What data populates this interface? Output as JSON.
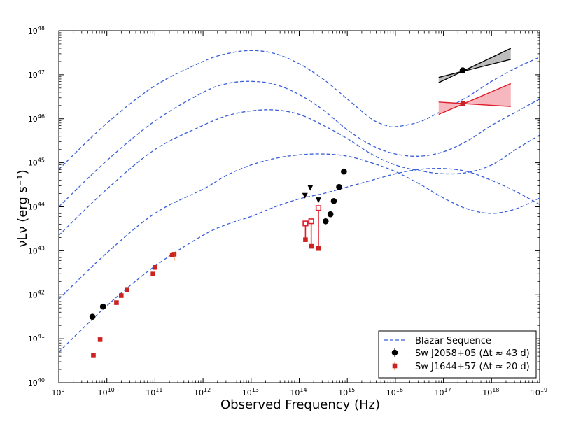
{
  "chart_data": {
    "type": "scatter",
    "xlabel": "Observed Frequency (Hz)",
    "ylabel": "νLν (erg s⁻¹)",
    "xscale": "log",
    "yscale": "log",
    "xlim_exp": [
      9,
      19
    ],
    "ylim_exp": [
      40,
      48
    ],
    "x_ticks": [
      {
        "base": "10",
        "exp": "9",
        "v": 9
      },
      {
        "base": "10",
        "exp": "10",
        "v": 10
      },
      {
        "base": "10",
        "exp": "11",
        "v": 11
      },
      {
        "base": "10",
        "exp": "12",
        "v": 12
      },
      {
        "base": "10",
        "exp": "13",
        "v": 13
      },
      {
        "base": "10",
        "exp": "14",
        "v": 14
      },
      {
        "base": "10",
        "exp": "15",
        "v": 15
      },
      {
        "base": "10",
        "exp": "16",
        "v": 16
      },
      {
        "base": "10",
        "exp": "17",
        "v": 17
      },
      {
        "base": "10",
        "exp": "18",
        "v": 18
      },
      {
        "base": "10",
        "exp": "19",
        "v": 19
      }
    ],
    "y_ticks": [
      {
        "base": "10",
        "exp": "40",
        "v": 40
      },
      {
        "base": "10",
        "exp": "41",
        "v": 41
      },
      {
        "base": "10",
        "exp": "42",
        "v": 42
      },
      {
        "base": "10",
        "exp": "43",
        "v": 43
      },
      {
        "base": "10",
        "exp": "44",
        "v": 44
      },
      {
        "base": "10",
        "exp": "45",
        "v": 45
      },
      {
        "base": "10",
        "exp": "46",
        "v": 46
      },
      {
        "base": "10",
        "exp": "47",
        "v": 47
      },
      {
        "base": "10",
        "exp": "48",
        "v": 48
      }
    ],
    "blazar_sequence": {
      "name": "Blazar Sequence",
      "color": "#3a5fd9",
      "curves": [
        [
          [
            9.0,
            44.85
          ],
          [
            10.0,
            45.9
          ],
          [
            11.0,
            46.75
          ],
          [
            12.0,
            47.3
          ],
          [
            12.5,
            47.48
          ],
          [
            13.0,
            47.55
          ],
          [
            13.5,
            47.48
          ],
          [
            14.0,
            47.25
          ],
          [
            14.5,
            46.9
          ],
          [
            15.0,
            46.45
          ],
          [
            15.5,
            46.0
          ],
          [
            15.8,
            45.85
          ],
          [
            16.0,
            45.82
          ],
          [
            16.5,
            45.93
          ],
          [
            17.0,
            46.2
          ],
          [
            17.5,
            46.5
          ],
          [
            18.0,
            46.85
          ],
          [
            18.5,
            47.15
          ],
          [
            19.0,
            47.4
          ]
        ],
        [
          [
            9.0,
            44.0
          ],
          [
            10.0,
            45.05
          ],
          [
            11.0,
            45.95
          ],
          [
            12.0,
            46.6
          ],
          [
            12.5,
            46.8
          ],
          [
            13.0,
            46.85
          ],
          [
            13.5,
            46.78
          ],
          [
            14.0,
            46.55
          ],
          [
            14.5,
            46.2
          ],
          [
            15.0,
            45.75
          ],
          [
            15.5,
            45.4
          ],
          [
            16.0,
            45.2
          ],
          [
            16.5,
            45.15
          ],
          [
            17.0,
            45.25
          ],
          [
            17.5,
            45.5
          ],
          [
            18.0,
            45.85
          ],
          [
            18.5,
            46.15
          ],
          [
            19.0,
            46.45
          ]
        ],
        [
          [
            9.0,
            43.35
          ],
          [
            10.0,
            44.4
          ],
          [
            11.0,
            45.3
          ],
          [
            12.0,
            45.85
          ],
          [
            12.5,
            46.07
          ],
          [
            13.0,
            46.18
          ],
          [
            13.5,
            46.2
          ],
          [
            14.0,
            46.1
          ],
          [
            14.5,
            45.85
          ],
          [
            15.0,
            45.55
          ],
          [
            15.5,
            45.2
          ],
          [
            16.0,
            44.95
          ],
          [
            16.5,
            44.82
          ],
          [
            17.0,
            44.75
          ],
          [
            17.5,
            44.78
          ],
          [
            18.0,
            44.95
          ],
          [
            18.5,
            45.3
          ],
          [
            19.0,
            45.63
          ]
        ],
        [
          [
            9.0,
            41.9
          ],
          [
            10.0,
            42.95
          ],
          [
            11.0,
            43.85
          ],
          [
            12.0,
            44.4
          ],
          [
            12.5,
            44.72
          ],
          [
            13.0,
            44.95
          ],
          [
            13.5,
            45.1
          ],
          [
            14.0,
            45.18
          ],
          [
            14.5,
            45.2
          ],
          [
            15.0,
            45.15
          ],
          [
            15.5,
            45.0
          ],
          [
            16.0,
            44.8
          ],
          [
            16.5,
            44.52
          ],
          [
            17.0,
            44.2
          ],
          [
            17.5,
            43.95
          ],
          [
            18.0,
            43.85
          ],
          [
            18.5,
            43.95
          ],
          [
            19.0,
            44.2
          ]
        ],
        [
          [
            9.0,
            40.7
          ],
          [
            10.0,
            41.75
          ],
          [
            11.0,
            42.65
          ],
          [
            12.0,
            43.35
          ],
          [
            12.5,
            43.6
          ],
          [
            13.0,
            43.78
          ],
          [
            13.5,
            44.0
          ],
          [
            14.0,
            44.18
          ],
          [
            14.5,
            44.3
          ],
          [
            15.0,
            44.45
          ],
          [
            15.5,
            44.6
          ],
          [
            16.0,
            44.75
          ],
          [
            16.5,
            44.85
          ],
          [
            17.0,
            44.87
          ],
          [
            17.5,
            44.8
          ],
          [
            18.0,
            44.6
          ],
          [
            18.5,
            44.35
          ],
          [
            19.0,
            44.05
          ]
        ]
      ]
    },
    "series": [
      {
        "name": "Sw J2058+05",
        "label_text": "Sw J2058+05 (Δt ≈ 43 d)",
        "color": "#000000",
        "points": [
          [
            9.7,
            41.5
          ],
          [
            9.92,
            41.73
          ],
          [
            14.55,
            43.67
          ],
          [
            14.65,
            43.83
          ],
          [
            14.72,
            44.13
          ],
          [
            14.83,
            44.45
          ],
          [
            14.93,
            44.8
          ]
        ],
        "upper_limits": [
          [
            14.12,
            44.25
          ],
          [
            14.23,
            44.43
          ],
          [
            14.4,
            44.15
          ]
        ],
        "xray_point": [
          17.4,
          47.1
        ],
        "xray_bowtie": {
          "x": [
            16.9,
            18.4
          ],
          "upper": [
            46.94,
            47.6
          ],
          "lower": [
            46.82,
            47.35
          ]
        }
      },
      {
        "name": "Sw J1644+57",
        "label_text": "Sw J1644+57 (Δt ≈ 20 d)",
        "color": "#cc2222",
        "points": [
          [
            9.72,
            40.63
          ],
          [
            9.86,
            40.98
          ],
          [
            10.2,
            41.82
          ],
          [
            10.3,
            41.98
          ],
          [
            10.42,
            42.12
          ],
          [
            10.96,
            42.47
          ],
          [
            11.0,
            42.62
          ],
          [
            11.36,
            42.9
          ],
          [
            11.4,
            42.92
          ]
        ],
        "hollow_points": [
          [
            14.13,
            43.62
          ],
          [
            14.25,
            43.67
          ],
          [
            14.4,
            43.97
          ]
        ],
        "filled_low": [
          [
            14.13,
            43.25
          ],
          [
            14.25,
            43.1
          ],
          [
            14.4,
            43.05
          ]
        ],
        "xray_point": [
          17.4,
          46.35
        ],
        "xray_bowtie": {
          "x": [
            16.9,
            18.4
          ],
          "upper": [
            46.38,
            46.8
          ],
          "lower": [
            46.1,
            46.28
          ]
        }
      }
    ],
    "legend": {
      "position": "lower-right",
      "entries": [
        {
          "label": "Blazar Sequence"
        },
        {
          "label": "Sw J2058+05 (Δt ≈ 43 d)"
        },
        {
          "label": "Sw J1644+57 (Δt ≈ 20 d)"
        }
      ]
    }
  }
}
